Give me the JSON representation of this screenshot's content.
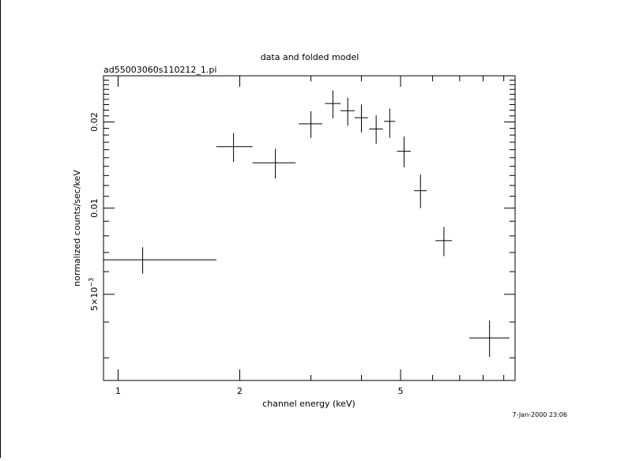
{
  "colors": {
    "background": "#ffffff",
    "ink": "#000000"
  },
  "chart_data": {
    "type": "scatter",
    "title": "data and folded model",
    "subtitle": "ad55003060s110212_1.pi",
    "xlabel": "channel energy (keV)",
    "ylabel": "normalized counts/sec/keV",
    "xscale": "log",
    "yscale": "log",
    "xlim": [
      0.92,
      9.6
    ],
    "ylim": [
      0.0025,
      0.029
    ],
    "x_ticks": [
      {
        "value": 1,
        "label": "1"
      },
      {
        "value": 2,
        "label": "2"
      },
      {
        "value": 5,
        "label": "5"
      }
    ],
    "y_ticks": [
      {
        "value": 0.005,
        "label_main": "5×10",
        "label_exp": "−3"
      },
      {
        "value": 0.01,
        "label": "0.01"
      },
      {
        "value": 0.02,
        "label": "0.02"
      }
    ],
    "timestamp": "7-Jan-2000 23:06",
    "points": [
      {
        "x": 1.15,
        "xlo": 0.92,
        "xhi": 1.75,
        "y": 0.0066,
        "ylo": 0.0059,
        "yhi": 0.0073
      },
      {
        "x": 1.93,
        "xlo": 1.75,
        "xhi": 2.15,
        "y": 0.0164,
        "ylo": 0.0145,
        "yhi": 0.0183
      },
      {
        "x": 2.45,
        "xlo": 2.15,
        "xhi": 2.75,
        "y": 0.0144,
        "ylo": 0.0127,
        "yhi": 0.0161
      },
      {
        "x": 3.0,
        "xlo": 2.8,
        "xhi": 3.2,
        "y": 0.0197,
        "ylo": 0.0176,
        "yhi": 0.0218
      },
      {
        "x": 3.4,
        "xlo": 3.25,
        "xhi": 3.55,
        "y": 0.0232,
        "ylo": 0.0206,
        "yhi": 0.0258
      },
      {
        "x": 3.7,
        "xlo": 3.55,
        "xhi": 3.85,
        "y": 0.0219,
        "ylo": 0.0194,
        "yhi": 0.0243
      },
      {
        "x": 4.0,
        "xlo": 3.85,
        "xhi": 4.15,
        "y": 0.0207,
        "ylo": 0.0184,
        "yhi": 0.023
      },
      {
        "x": 4.35,
        "xlo": 4.18,
        "xhi": 4.52,
        "y": 0.0189,
        "ylo": 0.0168,
        "yhi": 0.0211
      },
      {
        "x": 4.7,
        "xlo": 4.55,
        "xhi": 4.85,
        "y": 0.0201,
        "ylo": 0.0176,
        "yhi": 0.0223
      },
      {
        "x": 5.1,
        "xlo": 4.9,
        "xhi": 5.3,
        "y": 0.0158,
        "ylo": 0.0139,
        "yhi": 0.0178
      },
      {
        "x": 5.6,
        "xlo": 5.4,
        "xhi": 5.8,
        "y": 0.0115,
        "ylo": 0.01,
        "yhi": 0.0131
      },
      {
        "x": 6.4,
        "xlo": 6.1,
        "xhi": 6.7,
        "y": 0.0077,
        "ylo": 0.0068,
        "yhi": 0.0086
      },
      {
        "x": 8.3,
        "xlo": 7.4,
        "xhi": 9.3,
        "y": 0.00352,
        "ylo": 0.00302,
        "yhi": 0.00405
      }
    ]
  }
}
